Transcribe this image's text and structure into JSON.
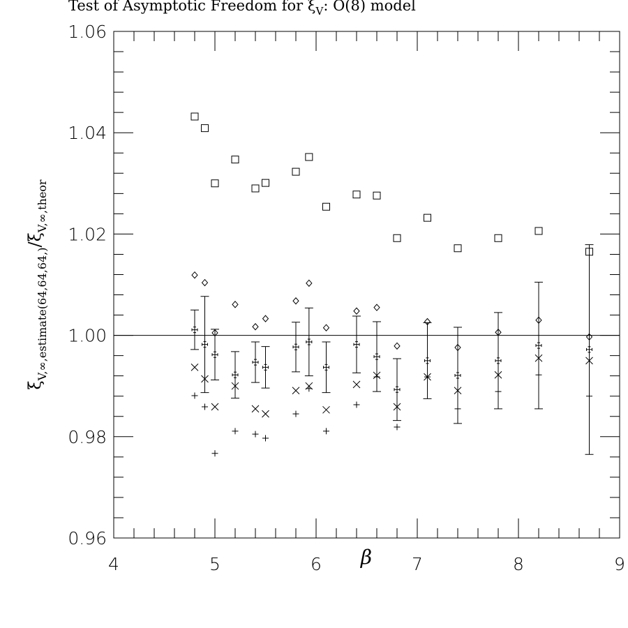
{
  "chart_data": {
    "type": "scatter",
    "title": "Test of Asymptotic Freedom for ξ",
    "title_sub": "V",
    "title_rest": ": O(8) model",
    "ylabel": [
      "ξ",
      "V,∞,estimate(64,64,64,)",
      "/",
      "ξ",
      "V,∞,theor"
    ],
    "xlabel": "β",
    "xlim": [
      4,
      9
    ],
    "ylim": [
      0.96,
      1.06
    ],
    "xticks": [
      4,
      5,
      6,
      7,
      8,
      9
    ],
    "yticks": [
      {
        "value": 0.96,
        "label": "0.96"
      },
      {
        "value": 0.98,
        "label": "0.98"
      },
      {
        "value": 1.0,
        "label": "1.00"
      },
      {
        "value": 1.02,
        "label": "1.02"
      },
      {
        "value": 1.04,
        "label": "1.04"
      },
      {
        "value": 1.06,
        "label": "1.06"
      }
    ],
    "xminorticks": [
      4.2,
      4.4,
      4.6,
      4.8,
      5.2,
      5.4,
      5.6,
      5.8,
      6.2,
      6.4,
      6.6,
      6.8,
      7.2,
      7.4,
      7.6,
      7.8,
      8.2,
      8.4,
      8.6,
      8.8
    ],
    "yminorticks": [
      0.964,
      0.968,
      0.972,
      0.976,
      0.984,
      0.988,
      0.992,
      0.996,
      1.004,
      1.008,
      1.012,
      1.016,
      1.024,
      1.028,
      1.032,
      1.036,
      1.044,
      1.048,
      1.052,
      1.056
    ],
    "hline": 1.0,
    "x": [
      4.8,
      4.9,
      5.0,
      5.2,
      5.4,
      5.5,
      5.8,
      5.93,
      6.1,
      6.4,
      6.6,
      6.8,
      7.1,
      7.4,
      7.8,
      8.2,
      8.7
    ],
    "series": [
      {
        "marker": "square",
        "color": "#000",
        "values": [
          1.0432,
          1.0409,
          1.03,
          1.0347,
          1.029,
          1.0301,
          1.0323,
          1.0352,
          1.0254,
          1.0278,
          1.0276,
          1.0192,
          1.0232,
          1.0172,
          1.0192,
          1.0206,
          1.0165
        ]
      },
      {
        "marker": "diamond",
        "color": "#000",
        "values": [
          1.0119,
          1.0104,
          1.0005,
          1.0061,
          1.0017,
          1.0033,
          1.0068,
          1.0103,
          1.0015,
          1.0048,
          1.0055,
          0.9979,
          1.0027,
          0.9976,
          1.0006,
          1.003,
          0.9997
        ]
      },
      {
        "marker": "crossbox",
        "color": "#000",
        "values": [
          1.0011,
          0.9982,
          0.9962,
          0.9922,
          0.9947,
          0.9937,
          0.9977,
          0.9987,
          0.9937,
          0.9982,
          0.9958,
          0.9893,
          0.995,
          0.9921,
          0.995,
          0.998,
          0.9972
        ],
        "errors": [
          0.0039,
          0.0095,
          0.005,
          0.0046,
          0.004,
          0.0041,
          0.0049,
          0.0067,
          0.005,
          0.0056,
          0.0069,
          0.0061,
          0.0075,
          0.0095,
          0.0095,
          0.0125,
          0.0207
        ]
      },
      {
        "marker": "cross",
        "color": "#000",
        "values": [
          0.9937,
          0.9914,
          0.9859,
          0.99,
          0.9855,
          0.9845,
          0.9891,
          0.99,
          0.9853,
          0.9903,
          0.9921,
          0.9859,
          0.9918,
          0.9891,
          0.9922,
          0.9955,
          0.995
        ]
      },
      {
        "marker": "plus",
        "color": "#000",
        "values": [
          0.9881,
          0.9859,
          0.9767,
          0.9811,
          0.9805,
          0.9797,
          0.9845,
          0.9895,
          0.9811,
          0.9863,
          0.9918,
          0.9819,
          0.9918,
          0.9855,
          0.9889,
          0.9922,
          0.988
        ]
      }
    ]
  }
}
